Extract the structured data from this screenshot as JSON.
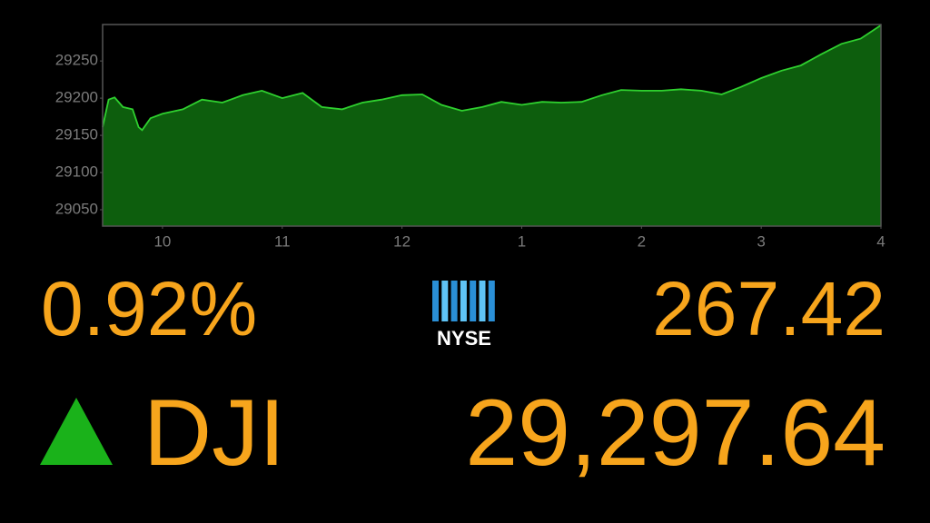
{
  "chart_data": {
    "type": "area",
    "x": [
      9.5,
      9.55,
      9.6,
      9.67,
      9.75,
      9.8,
      9.83,
      9.9,
      10.0,
      10.17,
      10.33,
      10.5,
      10.67,
      10.83,
      11.0,
      11.17,
      11.33,
      11.5,
      11.67,
      11.83,
      12.0,
      12.17,
      12.33,
      12.5,
      12.67,
      12.83,
      13.0,
      13.17,
      13.33,
      13.5,
      13.67,
      13.83,
      14.0,
      14.17,
      14.33,
      14.5,
      14.67,
      14.83,
      15.0,
      15.17,
      15.33,
      15.5,
      15.67,
      15.83,
      16.0
    ],
    "values": [
      29161,
      29198,
      29201,
      29188,
      29185,
      29161,
      29157,
      29173,
      29179,
      29185,
      29198,
      29194,
      29204,
      29210,
      29200,
      29207,
      29188,
      29185,
      29194,
      29198,
      29204,
      29205,
      29191,
      29183,
      29188,
      29195,
      29191,
      29195,
      29194,
      29195,
      29204,
      29211,
      29210,
      29210,
      29212,
      29210,
      29205,
      29215,
      29227,
      29237,
      29244,
      29259,
      29273,
      29280,
      29298
    ],
    "color": "#0d5e0d",
    "line_color": "#2fd02f",
    "xlim": [
      9.5,
      16
    ],
    "xticks": [
      10,
      11,
      12,
      {
        "value": 13,
        "label": "1"
      },
      {
        "value": 14,
        "label": "2"
      },
      {
        "value": 15,
        "label": "3"
      },
      {
        "value": 16,
        "label": "4"
      }
    ],
    "ylim": [
      29028,
      29299
    ],
    "yticks": [
      29050,
      29100,
      29150,
      29200,
      29250
    ],
    "grid": false
  },
  "ticker": {
    "change_percent": "0.92%",
    "logo": "NYSE",
    "change_points": "267.42",
    "index": "DJI",
    "index_value": "29,297.64"
  }
}
